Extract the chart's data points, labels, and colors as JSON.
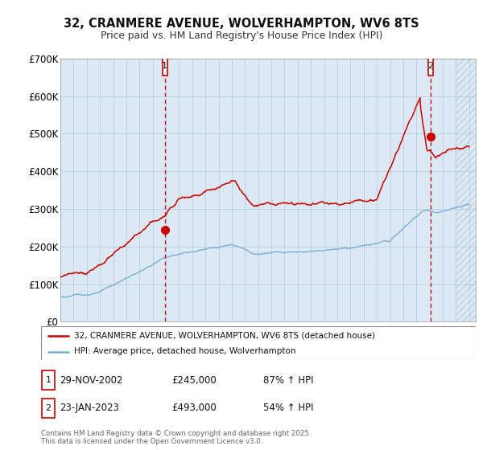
{
  "title_line1": "32, CRANMERE AVENUE, WOLVERHAMPTON, WV6 8TS",
  "title_line2": "Price paid vs. HM Land Registry's House Price Index (HPI)",
  "ylim": [
    0,
    700000
  ],
  "yticks": [
    0,
    100000,
    200000,
    300000,
    400000,
    500000,
    600000,
    700000
  ],
  "ytick_labels": [
    "£0",
    "£100K",
    "£200K",
    "£300K",
    "£400K",
    "£500K",
    "£600K",
    "£700K"
  ],
  "red_color": "#cc0000",
  "blue_color": "#7aafd4",
  "chart_bg_color": "#dce9f5",
  "background_color": "#ffffff",
  "grid_color": "#b8cfe0",
  "legend_label_red": "32, CRANMERE AVENUE, WOLVERHAMPTON, WV6 8TS (detached house)",
  "legend_label_blue": "HPI: Average price, detached house, Wolverhampton",
  "transaction1_date": "29-NOV-2002",
  "transaction1_price": "£245,000",
  "transaction1_hpi": "87% ↑ HPI",
  "transaction2_date": "23-JAN-2023",
  "transaction2_price": "£493,000",
  "transaction2_hpi": "54% ↑ HPI",
  "footnote": "Contains HM Land Registry data © Crown copyright and database right 2025.\nThis data is licensed under the Open Government Licence v3.0.",
  "marker1_x": 2002.92,
  "marker1_y": 245000,
  "marker2_x": 2023.07,
  "marker2_y": 493000,
  "vline1_x": 2002.92,
  "vline2_x": 2023.07,
  "xlim_start": 1995.0,
  "xlim_end": 2026.5,
  "hatch_start": 2025.0
}
